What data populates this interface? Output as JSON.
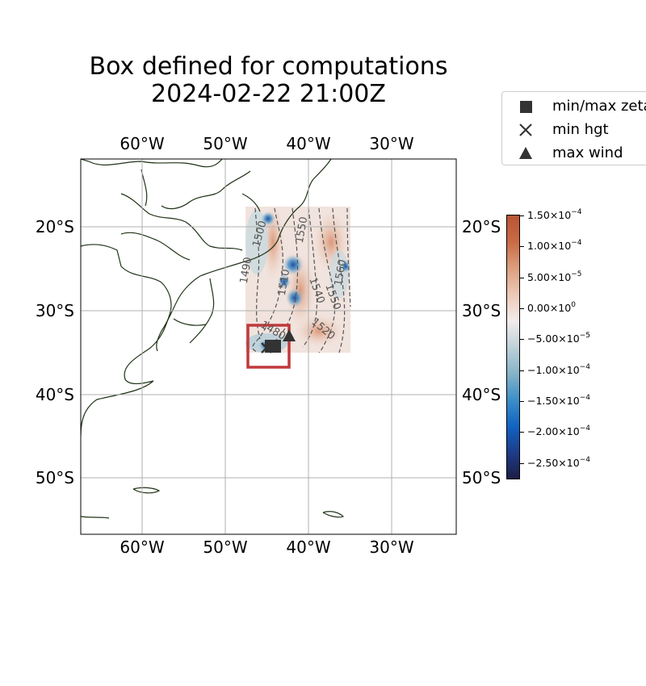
{
  "title": {
    "line1": "Box defined for computations",
    "line2": "2024-02-22 21:00Z"
  },
  "map": {
    "projection": "PlateCarree",
    "lon_range": [
      -67.3,
      -22.3
    ],
    "lat_range": [
      -56.6,
      -11.8
    ],
    "gridlines": true,
    "x_tick_labels": [
      "60°W",
      "50°W",
      "40°W",
      "30°W"
    ],
    "y_tick_labels": [
      "20°S",
      "30°S",
      "40°S",
      "50°S"
    ],
    "computation_box": {
      "lon_min": -47.5,
      "lon_max": -42.5,
      "lat_min": -37.0,
      "lat_max": -31.8,
      "color": "#c0393b"
    },
    "data_domain": {
      "lon_min": -47.5,
      "lon_max": -35.0,
      "lat_min": -35.0,
      "lat_max": -17.5
    },
    "contour_labels": [
      "1500",
      "1490",
      "1510",
      "1520",
      "1540",
      "1550",
      "1560",
      "1480",
      "1550"
    ],
    "markers": {
      "min_max_zeta": {
        "lon": -44.5,
        "lat": -34.4
      },
      "min_hgt": {
        "lon": -45.1,
        "lat": -34.8
      },
      "max_wind": {
        "lon": -42.3,
        "lat": -32.9
      }
    },
    "marker_color": "#333333"
  },
  "legend": {
    "items": [
      {
        "label": "min/max zeta",
        "marker": "square-marker"
      },
      {
        "label": "min hgt",
        "marker": "x-marker"
      },
      {
        "label": "max wind",
        "marker": "triangle-marker"
      }
    ]
  },
  "colorbar": {
    "min": -0.000275,
    "max": 0.00015,
    "colors": [
      "#1c1d45",
      "#1e3c8a",
      "#1064c2",
      "#3d8fc9",
      "#86b4c8",
      "#bfd1d8",
      "#f2ecea",
      "#ecc8b6",
      "#dd9e7d",
      "#c96a45",
      "#b85535"
    ],
    "ticks": [
      {
        "value": 0.00015,
        "mantissa": "1.50",
        "exp": "−4"
      },
      {
        "value": 0.0001,
        "mantissa": "1.00",
        "exp": "−4"
      },
      {
        "value": 5e-05,
        "mantissa": "5.00",
        "exp": "−5"
      },
      {
        "value": 0,
        "mantissa": "0.00",
        "exp": "0"
      },
      {
        "value": -5e-05,
        "mantissa": "−5.00",
        "exp": "−5"
      },
      {
        "value": -0.0001,
        "mantissa": "−1.00",
        "exp": "−4"
      },
      {
        "value": -0.00015,
        "mantissa": "−1.50",
        "exp": "−4"
      },
      {
        "value": -0.0002,
        "mantissa": "−2.00",
        "exp": "−4"
      },
      {
        "value": -0.00025,
        "mantissa": "−2.50",
        "exp": "−4"
      }
    ]
  }
}
